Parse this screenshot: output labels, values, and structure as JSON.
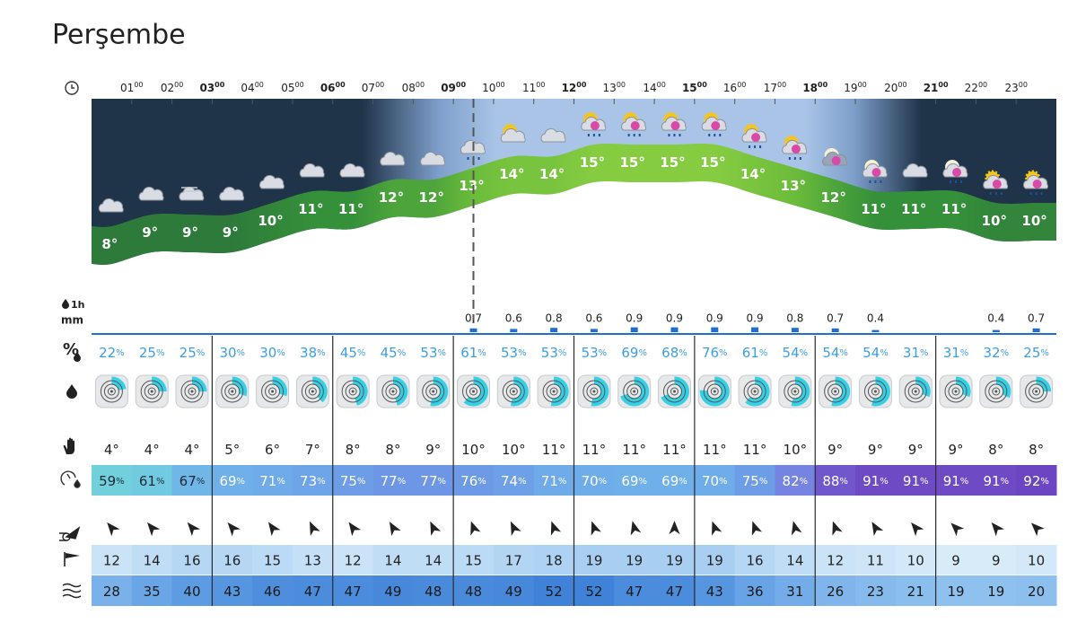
{
  "title": "Perşembe",
  "hours": [
    {
      "label": "01",
      "sup": "00",
      "major": false
    },
    {
      "label": "02",
      "sup": "00",
      "major": false
    },
    {
      "label": "03",
      "sup": "00",
      "major": true
    },
    {
      "label": "04",
      "sup": "00",
      "major": false
    },
    {
      "label": "05",
      "sup": "00",
      "major": false
    },
    {
      "label": "06",
      "sup": "00",
      "major": true
    },
    {
      "label": "07",
      "sup": "00",
      "major": false
    },
    {
      "label": "08",
      "sup": "00",
      "major": false
    },
    {
      "label": "09",
      "sup": "00",
      "major": true
    },
    {
      "label": "10",
      "sup": "00",
      "major": false
    },
    {
      "label": "11",
      "sup": "00",
      "major": false
    },
    {
      "label": "12",
      "sup": "00",
      "major": true
    },
    {
      "label": "13",
      "sup": "00",
      "major": false
    },
    {
      "label": "14",
      "sup": "00",
      "major": false
    },
    {
      "label": "15",
      "sup": "00",
      "major": true
    },
    {
      "label": "16",
      "sup": "00",
      "major": false
    },
    {
      "label": "17",
      "sup": "00",
      "major": false
    },
    {
      "label": "18",
      "sup": "00",
      "major": true
    },
    {
      "label": "19",
      "sup": "00",
      "major": false
    },
    {
      "label": "20",
      "sup": "00",
      "major": false
    },
    {
      "label": "21",
      "sup": "00",
      "major": true
    },
    {
      "label": "22",
      "sup": "00",
      "major": false
    },
    {
      "label": "23",
      "sup": "00",
      "major": false
    }
  ],
  "now": 9.5,
  "degree": "°",
  "percent": "%",
  "precip_unit": {
    "top": "1h",
    "bottom": "mm"
  },
  "temperature": [
    8,
    9,
    9,
    9,
    10,
    11,
    11,
    12,
    12,
    13,
    14,
    14,
    15,
    15,
    15,
    15,
    14,
    13,
    12,
    11,
    11,
    11,
    10,
    10
  ],
  "precipitation": [
    null,
    null,
    null,
    null,
    null,
    null,
    null,
    null,
    null,
    0.7,
    0.6,
    0.8,
    0.6,
    0.9,
    0.9,
    0.9,
    0.9,
    0.8,
    0.7,
    0.4,
    null,
    null,
    0.4,
    0.7
  ],
  "rain_probability": [
    22,
    25,
    25,
    30,
    30,
    38,
    45,
    45,
    53,
    61,
    53,
    53,
    53,
    69,
    68,
    76,
    61,
    54,
    54,
    54,
    31,
    31,
    32,
    25
  ],
  "feels_like": [
    4,
    4,
    4,
    5,
    6,
    7,
    8,
    8,
    9,
    10,
    10,
    11,
    11,
    11,
    11,
    11,
    11,
    10,
    9,
    9,
    9,
    9,
    8,
    8
  ],
  "humidity": [
    59,
    61,
    67,
    69,
    71,
    73,
    75,
    77,
    77,
    76,
    74,
    71,
    70,
    69,
    69,
    70,
    75,
    82,
    88,
    91,
    91,
    91,
    91,
    92
  ],
  "wind_dir": [
    140,
    140,
    140,
    140,
    145,
    155,
    145,
    150,
    155,
    160,
    155,
    160,
    160,
    165,
    180,
    160,
    160,
    165,
    160,
    150,
    140,
    135,
    140,
    135
  ],
  "wind_speed": [
    12,
    14,
    16,
    16,
    15,
    13,
    12,
    14,
    14,
    15,
    17,
    18,
    19,
    19,
    19,
    19,
    16,
    14,
    12,
    11,
    10,
    9,
    9,
    10
  ],
  "gusts": [
    28,
    35,
    40,
    43,
    46,
    47,
    47,
    49,
    48,
    48,
    49,
    52,
    52,
    47,
    47,
    43,
    36,
    31,
    26,
    23,
    21,
    19,
    19,
    20
  ]
}
